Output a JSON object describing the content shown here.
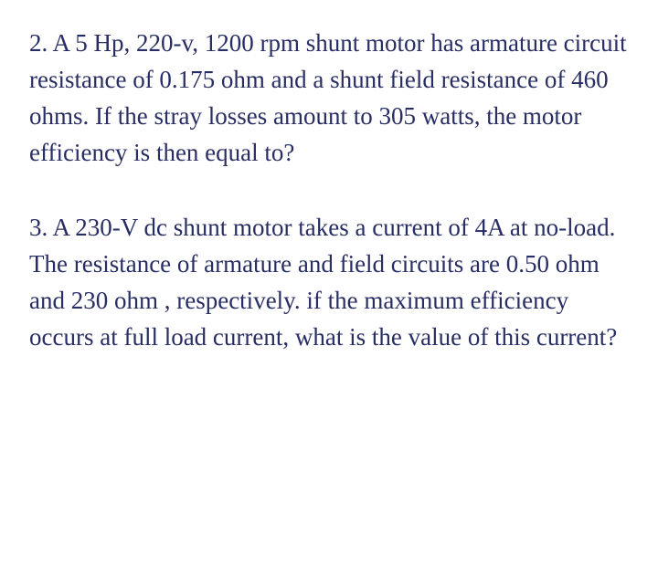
{
  "questions": [
    {
      "text": "2. A 5 Hp, 220-v, 1200 rpm shunt motor has armature circuit resistance of 0.175 ohm and a shunt field resistance of 460 ohms. If the stray losses amount to 305 watts, the motor efficiency is then equal to?"
    },
    {
      "text": "3. A 230-V dc shunt motor takes a current of 4A at no-load. The resistance of armature and field circuits are 0.50 ohm and 230 ohm , respectively. if the maximum efficiency occurs at full load current, what is the value of this current?"
    }
  ],
  "styling": {
    "text_color": "#282d63",
    "background_color": "#ffffff",
    "font_family": "Georgia, serif",
    "font_size": 27,
    "line_height": 1.48
  }
}
